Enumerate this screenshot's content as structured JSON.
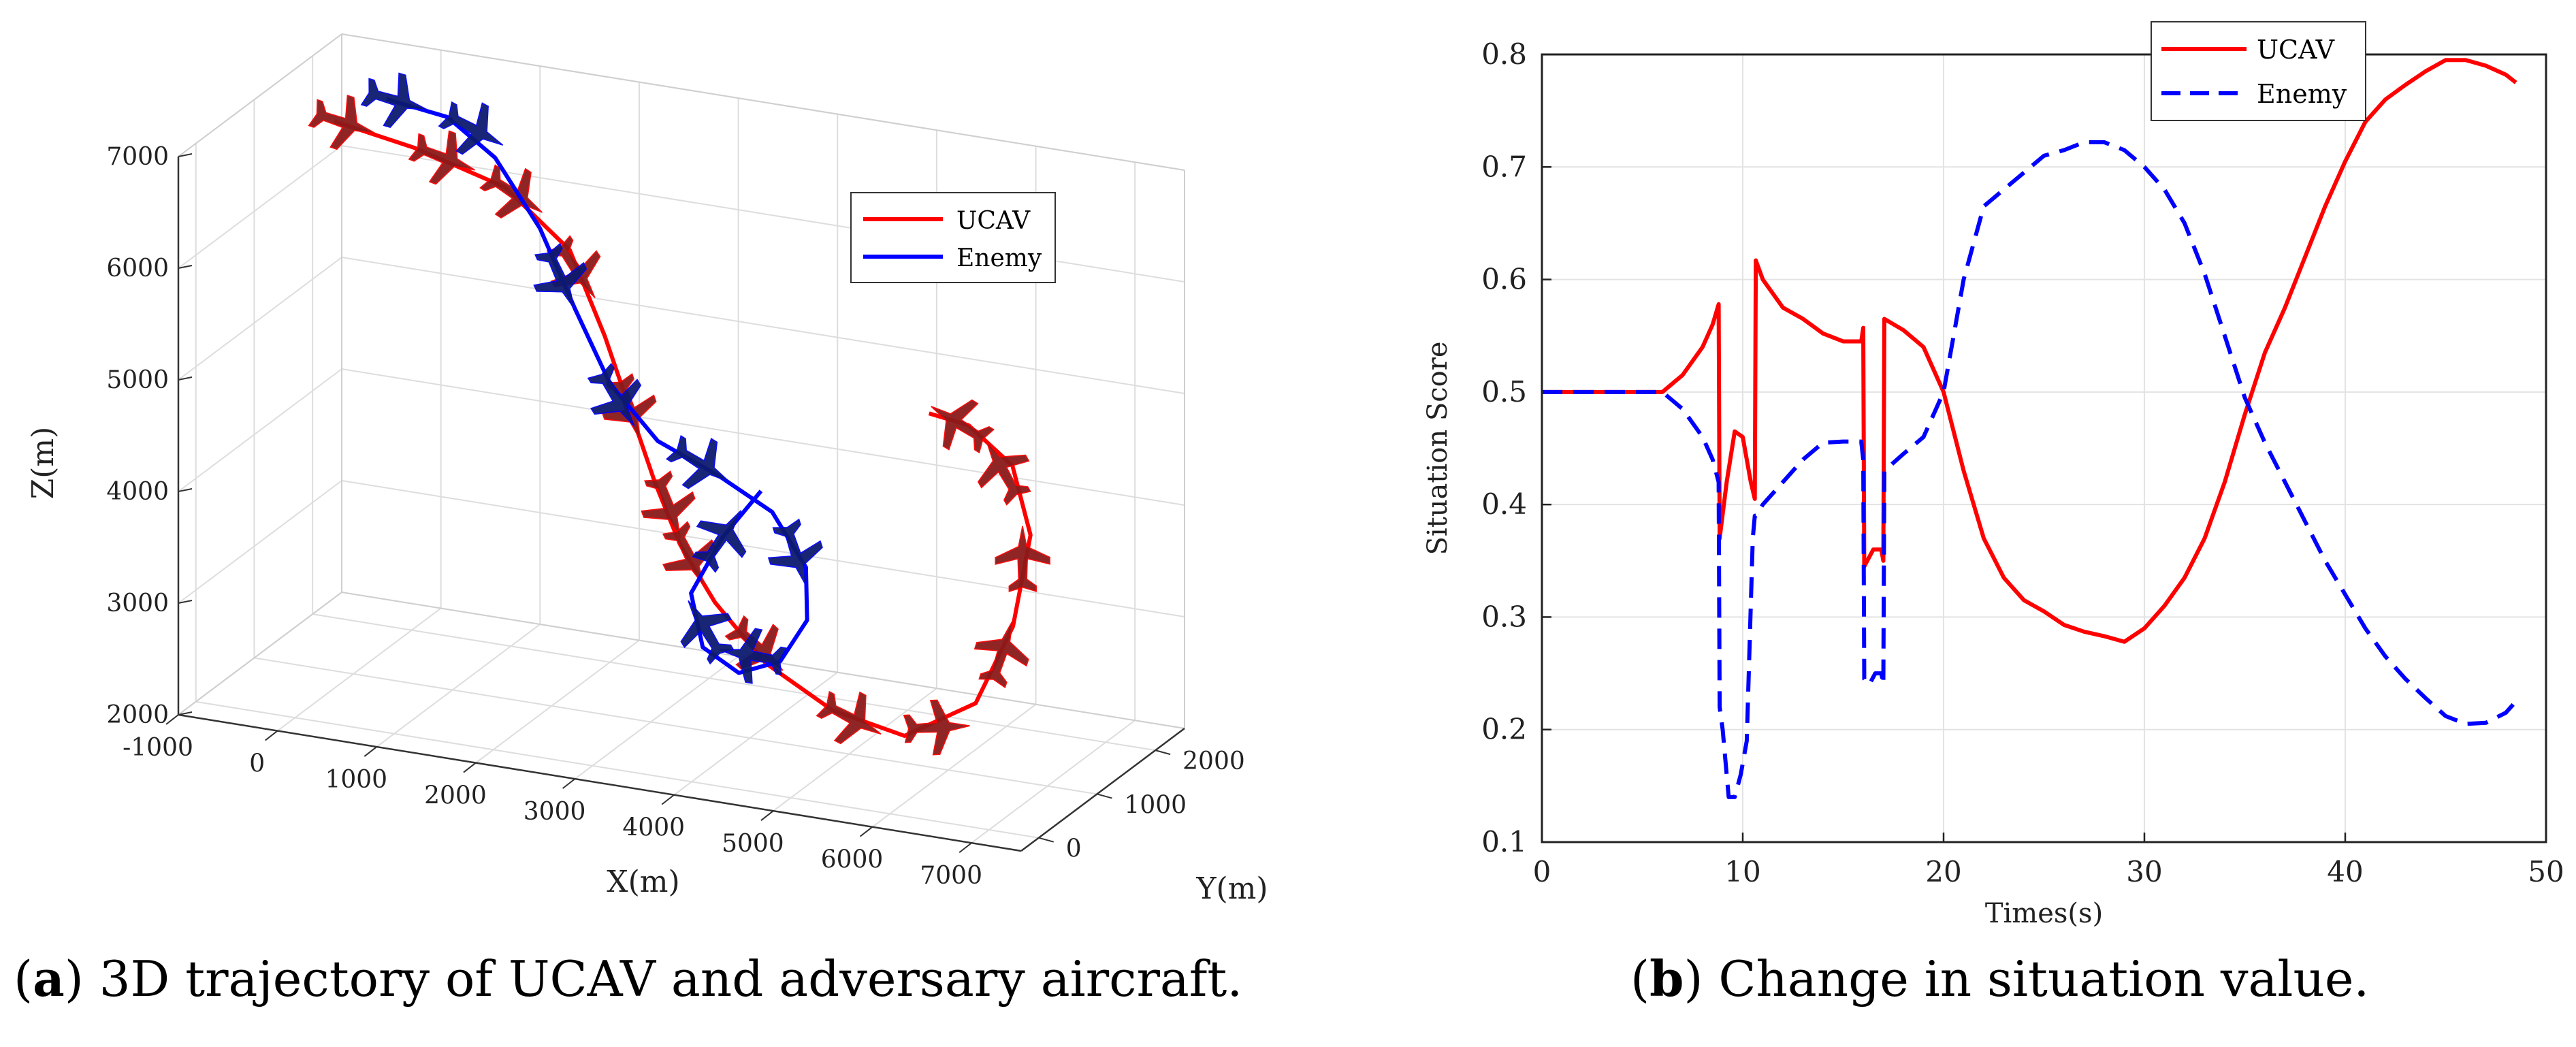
{
  "chart_data": [
    {
      "id": "a",
      "type": "line3d",
      "caption_label": "a",
      "caption_text": "3D trajectory of UCAV and adversary aircraft.",
      "xlabel": "X(m)",
      "ylabel": "Y(m)",
      "zlabel": "Z(m)",
      "xlim": [
        -1000,
        7500
      ],
      "ylim": [
        -300,
        2500
      ],
      "zlim": [
        2000,
        7000
      ],
      "x_ticks": [
        "-1000",
        "0",
        "1000",
        "2000",
        "3000",
        "4000",
        "5000",
        "6000",
        "7000"
      ],
      "y_ticks": [
        "0",
        "1000",
        "2000"
      ],
      "z_ticks": [
        "2000",
        "3000",
        "4000",
        "5000",
        "6000",
        "7000"
      ],
      "grid": true,
      "legend_position": "top-right",
      "series": [
        {
          "name": "UCAV",
          "color": "#ff0000",
          "marker_color": "#8b1a1a",
          "points": [
            [
              -900,
              2200,
              6350
            ],
            [
              0,
              2050,
              6300
            ],
            [
              1000,
              1900,
              6150
            ],
            [
              1800,
              1650,
              5800
            ],
            [
              2300,
              1400,
              5200
            ],
            [
              2700,
              1150,
              4700
            ],
            [
              3100,
              900,
              4200
            ],
            [
              3500,
              650,
              3800
            ],
            [
              4000,
              400,
              3450
            ],
            [
              4600,
              250,
              3050
            ],
            [
              5300,
              200,
              2750
            ],
            [
              6000,
              250,
              2600
            ],
            [
              6600,
              450,
              2900
            ],
            [
              6800,
              750,
              3500
            ],
            [
              6800,
              1050,
              4200
            ],
            [
              6500,
              1250,
              4700
            ],
            [
              6000,
              1350,
              4950
            ],
            [
              5600,
              1350,
              5000
            ]
          ],
          "markers": [
            [
              -800,
              2200,
              6350
            ],
            [
              300,
              2050,
              6250
            ],
            [
              1100,
              1900,
              6100
            ],
            [
              1900,
              1600,
              5650
            ],
            [
              2700,
              1150,
              4700
            ],
            [
              3300,
              800,
              4050
            ],
            [
              3600,
              650,
              3700
            ],
            [
              4500,
              300,
              3150
            ],
            [
              5500,
              200,
              2700
            ],
            [
              6300,
              300,
              2700
            ],
            [
              6750,
              650,
              3300
            ],
            [
              6750,
              1000,
              4000
            ],
            [
              6400,
              1250,
              4650
            ],
            [
              5900,
              1350,
              4950
            ]
          ]
        },
        {
          "name": "Enemy",
          "color": "#0000ff",
          "marker_color": "#0d1a6e",
          "points": [
            [
              -400,
              2250,
              6600
            ],
            [
              300,
              2100,
              6600
            ],
            [
              900,
              1900,
              6400
            ],
            [
              1500,
              1650,
              5950
            ],
            [
              2000,
              1400,
              5400
            ],
            [
              2500,
              1150,
              4900
            ],
            [
              3100,
              950,
              4550
            ],
            [
              3800,
              800,
              4400
            ],
            [
              4400,
              700,
              4200
            ],
            [
              4800,
              600,
              3800
            ],
            [
              4900,
              450,
              3400
            ],
            [
              4700,
              330,
              3050
            ],
            [
              4300,
              300,
              2900
            ],
            [
              3900,
              360,
              3050
            ],
            [
              3700,
              500,
              3450
            ],
            [
              3900,
              700,
              3900
            ],
            [
              4200,
              850,
              4300
            ]
          ],
          "markers": [
            [
              -300,
              2250,
              6600
            ],
            [
              600,
              2050,
              6550
            ],
            [
              1800,
              1500,
              5600
            ],
            [
              2600,
              1100,
              4800
            ],
            [
              3600,
              850,
              4450
            ],
            [
              4700,
              600,
              3900
            ],
            [
              4400,
              350,
              3050
            ],
            [
              3900,
              400,
              3200
            ],
            [
              3900,
              700,
              3900
            ]
          ]
        }
      ]
    },
    {
      "id": "b",
      "type": "line",
      "caption_label": "b",
      "caption_text": "Change in situation value.",
      "xlabel": "Times(s)",
      "ylabel": "Situation Score",
      "xlim": [
        0,
        50
      ],
      "ylim": [
        0.1,
        0.8
      ],
      "x_ticks": [
        "0",
        "10",
        "20",
        "30",
        "40",
        "50"
      ],
      "y_ticks": [
        "0.1",
        "0.2",
        "0.3",
        "0.4",
        "0.5",
        "0.6",
        "0.7",
        "0.8"
      ],
      "grid": true,
      "legend_position": "top-right",
      "series": [
        {
          "name": "UCAV",
          "color": "#ff0000",
          "style": "solid",
          "x": [
            0,
            6,
            7,
            8,
            8.5,
            8.8,
            8.85,
            9.2,
            9.6,
            10,
            10.4,
            10.6,
            10.65,
            11,
            12,
            13,
            14,
            15,
            15.9,
            16.0,
            16.05,
            16.5,
            16.9,
            17.0,
            17.05,
            18,
            19,
            20,
            21,
            22,
            23,
            24,
            25,
            26,
            27,
            28,
            29,
            30,
            31,
            32,
            33,
            34,
            35,
            36,
            37,
            38,
            39,
            40,
            41,
            42,
            43,
            44,
            45,
            46,
            47,
            48,
            48.5
          ],
          "y": [
            0.5,
            0.5,
            0.515,
            0.54,
            0.56,
            0.578,
            0.37,
            0.42,
            0.465,
            0.46,
            0.42,
            0.405,
            0.617,
            0.6,
            0.575,
            0.565,
            0.552,
            0.545,
            0.545,
            0.557,
            0.345,
            0.36,
            0.36,
            0.35,
            0.565,
            0.555,
            0.54,
            0.5,
            0.43,
            0.37,
            0.335,
            0.315,
            0.305,
            0.293,
            0.287,
            0.283,
            0.278,
            0.29,
            0.31,
            0.335,
            0.37,
            0.42,
            0.48,
            0.535,
            0.575,
            0.62,
            0.665,
            0.705,
            0.74,
            0.76,
            0.773,
            0.785,
            0.795,
            0.795,
            0.79,
            0.782,
            0.775
          ]
        },
        {
          "name": "Enemy",
          "color": "#0000ff",
          "style": "dashed",
          "x": [
            0,
            6,
            7,
            8,
            8.5,
            8.8,
            8.85,
            9.0,
            9.3,
            9.6,
            9.9,
            10.2,
            10.5,
            10.6,
            10.65,
            11,
            12,
            13,
            14,
            15,
            15.9,
            16.0,
            16.05,
            16.3,
            16.6,
            16.9,
            17.0,
            17.05,
            18,
            19,
            20,
            21,
            22,
            23,
            24,
            25,
            26,
            27,
            28,
            29,
            30,
            31,
            32,
            33,
            34,
            35,
            36,
            37,
            38,
            39,
            40,
            41,
            42,
            43,
            44,
            45,
            46,
            47,
            48,
            48.5
          ],
          "y": [
            0.5,
            0.5,
            0.485,
            0.46,
            0.44,
            0.42,
            0.22,
            0.2,
            0.14,
            0.14,
            0.16,
            0.19,
            0.37,
            0.39,
            0.39,
            0.4,
            0.42,
            0.44,
            0.455,
            0.456,
            0.456,
            0.44,
            0.245,
            0.24,
            0.25,
            0.25,
            0.24,
            0.43,
            0.445,
            0.46,
            0.5,
            0.6,
            0.665,
            0.68,
            0.695,
            0.71,
            0.715,
            0.722,
            0.722,
            0.715,
            0.7,
            0.68,
            0.65,
            0.605,
            0.55,
            0.495,
            0.455,
            0.42,
            0.385,
            0.35,
            0.32,
            0.29,
            0.265,
            0.245,
            0.228,
            0.212,
            0.205,
            0.206,
            0.215,
            0.225
          ]
        }
      ]
    }
  ]
}
